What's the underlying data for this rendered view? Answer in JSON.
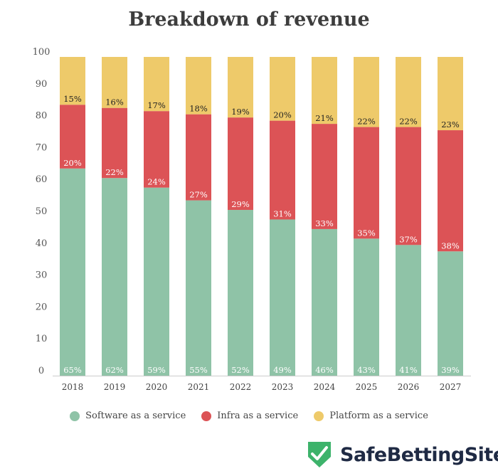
{
  "chart_data": {
    "type": "bar",
    "stacked": true,
    "title": "Breakdown of revenue",
    "categories": [
      "2018",
      "2019",
      "2020",
      "2021",
      "2022",
      "2023",
      "2024",
      "2025",
      "2026",
      "2027"
    ],
    "series": [
      {
        "name": "Software as a service",
        "color": "#8fc3a7",
        "values": [
          65,
          62,
          59,
          55,
          52,
          49,
          46,
          43,
          41,
          39
        ],
        "labels": [
          "65%",
          "62%",
          "59%",
          "55%",
          "52%",
          "49%",
          "46%",
          "43%",
          "41%",
          "39%"
        ],
        "label_color": "#ffffff"
      },
      {
        "name": "Infra as a service",
        "color": "#dc5356",
        "values": [
          20,
          22,
          24,
          27,
          29,
          31,
          33,
          35,
          37,
          38
        ],
        "labels": [
          "20%",
          "22%",
          "24%",
          "27%",
          "29%",
          "31%",
          "33%",
          "35%",
          "37%",
          "38%"
        ],
        "label_color": "#ffffff"
      },
      {
        "name": "Platform as a service",
        "color": "#eeca6a",
        "values": [
          15,
          16,
          17,
          18,
          19,
          20,
          21,
          22,
          22,
          23
        ],
        "labels": [
          "15%",
          "16%",
          "17%",
          "18%",
          "19%",
          "20%",
          "21%",
          "22%",
          "22%",
          "23%"
        ],
        "label_color": "#222222"
      }
    ],
    "ylim": [
      0,
      100
    ],
    "yticks": [
      "0",
      "10",
      "20",
      "30",
      "40",
      "50",
      "60",
      "70",
      "80",
      "90",
      "100"
    ],
    "grid": false,
    "legend": "bottom"
  },
  "branding": {
    "logo_text": "SafeBettingSites",
    "logo_color": "#3db36b"
  }
}
